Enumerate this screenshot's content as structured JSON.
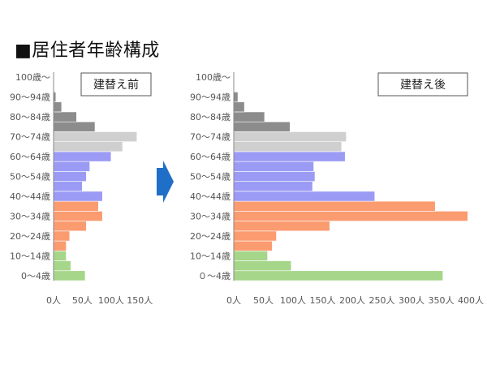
{
  "heading": "■居住者年齢構成",
  "colors": {
    "elderly_dark": "#8c8c8c",
    "elderly_light": "#cfcfcf",
    "middle": "#9b9bf5",
    "young": "#fb9b70",
    "child": "#a6d68a",
    "arrow": "#1f6fc9",
    "axis": "#888888"
  },
  "chart_data": [
    {
      "type": "bar",
      "orientation": "horizontal",
      "panel_label": "建替え前",
      "categories": [
        "0～4歳",
        "",
        "10～14歳",
        "",
        "20～24歳",
        "",
        "30～34歳",
        "",
        "40～44歳",
        "",
        "50～54歳",
        "",
        "60～64歳",
        "",
        "70～74歳",
        "",
        "80～84歳",
        "",
        "90～94歳",
        "",
        "100歳～"
      ],
      "values": [
        55,
        30,
        22,
        22,
        28,
        57,
        85,
        78,
        85,
        50,
        57,
        63,
        100,
        120,
        145,
        72,
        40,
        14,
        4,
        0,
        0
      ],
      "colors": [
        "#a6d68a",
        "#a6d68a",
        "#a6d68a",
        "#fb9b70",
        "#fb9b70",
        "#fb9b70",
        "#fb9b70",
        "#fb9b70",
        "#9b9bf5",
        "#9b9bf5",
        "#9b9bf5",
        "#9b9bf5",
        "#9b9bf5",
        "#cfcfcf",
        "#cfcfcf",
        "#8c8c8c",
        "#8c8c8c",
        "#8c8c8c",
        "#8c8c8c",
        "#8c8c8c",
        "#8c8c8c"
      ],
      "xlim": [
        0,
        175
      ],
      "xticks": [
        0,
        50,
        100,
        150
      ],
      "xtick_labels": [
        "0人",
        "50人",
        "100人",
        "150人"
      ]
    },
    {
      "type": "bar",
      "orientation": "horizontal",
      "panel_label": "建替え後",
      "categories": [
        "０～4歳",
        "",
        "10～14歳",
        "",
        "20～24歳",
        "",
        "30～34歳",
        "",
        "40～44歳",
        "",
        "50～54歳",
        "",
        "60～64歳",
        "",
        "70～74歳",
        "",
        "80～84歳",
        "",
        "90～94歳",
        "",
        "100歳～"
      ],
      "values": [
        353,
        97,
        57,
        65,
        72,
        162,
        395,
        340,
        238,
        133,
        137,
        135,
        188,
        182,
        190,
        95,
        52,
        18,
        7,
        0,
        0
      ],
      "colors": [
        "#a6d68a",
        "#a6d68a",
        "#a6d68a",
        "#fb9b70",
        "#fb9b70",
        "#fb9b70",
        "#fb9b70",
        "#fb9b70",
        "#9b9bf5",
        "#9b9bf5",
        "#9b9bf5",
        "#9b9bf5",
        "#9b9bf5",
        "#cfcfcf",
        "#cfcfcf",
        "#8c8c8c",
        "#8c8c8c",
        "#8c8c8c",
        "#8c8c8c",
        "#8c8c8c",
        "#8c8c8c"
      ],
      "xlim": [
        0,
        400
      ],
      "xticks": [
        0,
        50,
        100,
        150,
        200,
        250,
        300,
        350,
        400
      ],
      "xtick_labels": [
        "0人",
        "50人",
        "100人",
        "150人",
        "200人",
        "250人",
        "300人",
        "350人",
        "400人"
      ]
    }
  ]
}
